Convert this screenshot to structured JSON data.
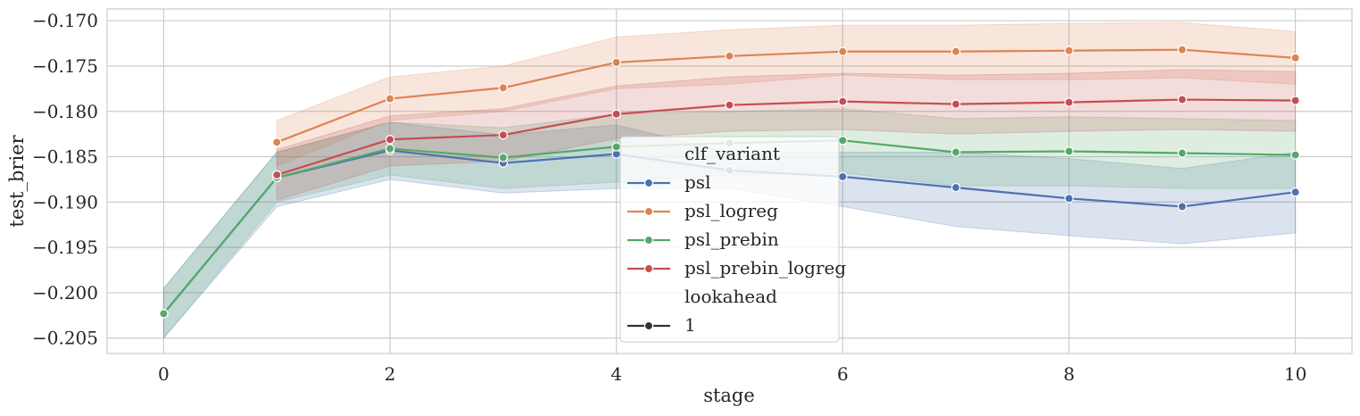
{
  "chart_data": {
    "type": "line",
    "xlabel": "stage",
    "ylabel": "test_brier",
    "xlim": [
      -0.5,
      10.5
    ],
    "ylim": [
      -0.2067,
      -0.1687
    ],
    "xticks": [
      0,
      2,
      4,
      6,
      8,
      10
    ],
    "xtick_labels": [
      "0",
      "2",
      "4",
      "6",
      "8",
      "10"
    ],
    "yticks": [
      -0.17,
      -0.175,
      -0.18,
      -0.185,
      -0.19,
      -0.195,
      -0.2,
      -0.205
    ],
    "ytick_labels": [
      "−0.170",
      "−0.175",
      "−0.180",
      "−0.185",
      "−0.190",
      "−0.195",
      "−0.200",
      "−0.205"
    ],
    "grid": true,
    "legend": {
      "placement": "center",
      "hue_title": "clf_variant",
      "style_title": "lookahead",
      "style_items": [
        {
          "label": "1",
          "color": "#333333"
        }
      ]
    },
    "series": [
      {
        "name": "psl",
        "color": "#4c72b0",
        "x": [
          0,
          1,
          2,
          3,
          4,
          5,
          6,
          7,
          8,
          9,
          10
        ],
        "values": [
          -0.2023,
          -0.1873,
          -0.1843,
          -0.1857,
          -0.1847,
          -0.1865,
          -0.1872,
          -0.1884,
          -0.1896,
          -0.1905,
          -0.1889
        ],
        "ci_low": [
          -0.205,
          -0.1905,
          -0.1875,
          -0.189,
          -0.1885,
          -0.1885,
          -0.1905,
          -0.1927,
          -0.1937,
          -0.1946,
          -0.1934
        ],
        "ci_high": [
          -0.1995,
          -0.1845,
          -0.1812,
          -0.1826,
          -0.1815,
          -0.1845,
          -0.1845,
          -0.1845,
          -0.1852,
          -0.1863,
          -0.1845
        ]
      },
      {
        "name": "psl_logreg",
        "color": "#dd8452",
        "x": [
          1,
          2,
          3,
          4,
          5,
          6,
          7,
          8,
          9,
          10
        ],
        "values": [
          -0.1834,
          -0.1786,
          -0.1774,
          -0.1746,
          -0.1739,
          -0.1734,
          -0.1734,
          -0.1733,
          -0.1732,
          -0.1741
        ],
        "ci_low": [
          -0.186,
          -0.181,
          -0.18,
          -0.1775,
          -0.177,
          -0.176,
          -0.1765,
          -0.1765,
          -0.1763,
          -0.177
        ],
        "ci_high": [
          -0.181,
          -0.1762,
          -0.175,
          -0.1718,
          -0.171,
          -0.1705,
          -0.1705,
          -0.1703,
          -0.1702,
          -0.1712
        ]
      },
      {
        "name": "psl_prebin",
        "color": "#55a868",
        "x": [
          0,
          1,
          2,
          3,
          4,
          5,
          6,
          7,
          8,
          9,
          10
        ],
        "values": [
          -0.2023,
          -0.1873,
          -0.1841,
          -0.1851,
          -0.1839,
          -0.1835,
          -0.1832,
          -0.1845,
          -0.1844,
          -0.1846,
          -0.1848
        ],
        "ci_low": [
          -0.205,
          -0.19,
          -0.187,
          -0.1885,
          -0.1878,
          -0.187,
          -0.1868,
          -0.1882,
          -0.1882,
          -0.1885,
          -0.1885
        ],
        "ci_high": [
          -0.1995,
          -0.1845,
          -0.1812,
          -0.1818,
          -0.1803,
          -0.18,
          -0.1797,
          -0.1808,
          -0.1806,
          -0.1808,
          -0.181
        ]
      },
      {
        "name": "psl_prebin_logreg",
        "color": "#c44e52",
        "x": [
          1,
          2,
          3,
          4,
          5,
          6,
          7,
          8,
          9,
          10
        ],
        "values": [
          -0.187,
          -0.1831,
          -0.1826,
          -0.1803,
          -0.1793,
          -0.1789,
          -0.1792,
          -0.179,
          -0.1787,
          -0.1788
        ],
        "ci_low": [
          -0.1898,
          -0.186,
          -0.1855,
          -0.183,
          -0.1822,
          -0.182,
          -0.1825,
          -0.1822,
          -0.182,
          -0.1822
        ],
        "ci_high": [
          -0.1842,
          -0.1805,
          -0.1797,
          -0.1772,
          -0.1762,
          -0.1758,
          -0.176,
          -0.1758,
          -0.1754,
          -0.1756
        ]
      }
    ]
  }
}
